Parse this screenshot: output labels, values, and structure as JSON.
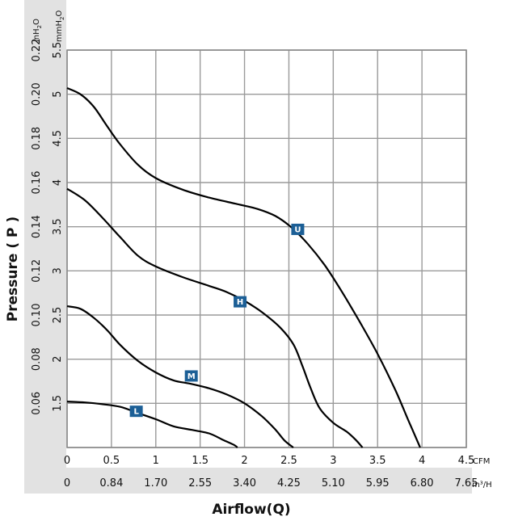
{
  "chart_data": {
    "type": "line",
    "title": "",
    "xlabel": "Airflow(Q)",
    "ylabel": "Pressure ( P )",
    "x_unit_primary": "CFM",
    "x_unit_secondary": "m³/H",
    "y_unit_inh2o_parts": [
      "inH",
      "2",
      "O"
    ],
    "y_unit_mmh2o_parts": [
      "mmH",
      "2",
      "O"
    ],
    "xlim": [
      0,
      4.5
    ],
    "ylim": [
      1,
      5.5
    ],
    "grid": true,
    "x_ticks_cfm": [
      "0",
      "0.5",
      "1",
      "1.5",
      "2",
      "2.5",
      "3",
      "3.5",
      "4",
      "4.5"
    ],
    "x_ticks_m3h": [
      "0",
      "0.84",
      "1.70",
      "2.55",
      "3.40",
      "4.25",
      "5.10",
      "5.95",
      "6.80",
      "7.65"
    ],
    "y_ticks_mmh2o": [
      "1.5",
      "2",
      "2.5",
      "3",
      "3.5",
      "4",
      "4.5",
      "5",
      "5.5"
    ],
    "y_ticks_inh2o": [
      "0.06",
      "0.08",
      "0.10",
      "0.12",
      "0.14",
      "0.16",
      "0.18",
      "0.20",
      "0.22"
    ],
    "series": [
      {
        "name": "U",
        "x": [
          0,
          0.15,
          0.3,
          0.45,
          0.6,
          0.8,
          1.0,
          1.3,
          1.6,
          1.9,
          2.15,
          2.35,
          2.52,
          2.7,
          2.9,
          3.1,
          3.3,
          3.5,
          3.7,
          3.85,
          3.98
        ],
        "y": [
          5.07,
          5.0,
          4.86,
          4.64,
          4.43,
          4.2,
          4.05,
          3.92,
          3.83,
          3.76,
          3.7,
          3.62,
          3.5,
          3.32,
          3.07,
          2.76,
          2.42,
          2.06,
          1.65,
          1.3,
          1.0
        ],
        "label_at": [
          2.6,
          3.47
        ]
      },
      {
        "name": "H",
        "x": [
          0,
          0.2,
          0.4,
          0.6,
          0.8,
          1.0,
          1.3,
          1.6,
          1.8,
          2.0,
          2.2,
          2.4,
          2.55,
          2.65,
          2.75,
          2.85,
          3.0,
          3.15,
          3.25,
          3.33
        ],
        "y": [
          3.93,
          3.8,
          3.6,
          3.38,
          3.17,
          3.05,
          2.93,
          2.83,
          2.76,
          2.66,
          2.53,
          2.36,
          2.17,
          1.93,
          1.66,
          1.44,
          1.28,
          1.18,
          1.09,
          1.0
        ],
        "label_at": [
          1.95,
          2.65
        ]
      },
      {
        "name": "M",
        "x": [
          0,
          0.15,
          0.3,
          0.45,
          0.6,
          0.8,
          1.0,
          1.2,
          1.4,
          1.6,
          1.8,
          2.0,
          2.2,
          2.35,
          2.45,
          2.55
        ],
        "y": [
          2.6,
          2.57,
          2.47,
          2.33,
          2.16,
          1.98,
          1.85,
          1.76,
          1.72,
          1.67,
          1.6,
          1.5,
          1.35,
          1.2,
          1.08,
          1.0
        ],
        "label_at": [
          1.4,
          1.81
        ]
      },
      {
        "name": "L",
        "x": [
          0,
          0.2,
          0.4,
          0.6,
          0.8,
          1.0,
          1.2,
          1.4,
          1.6,
          1.75,
          1.88,
          1.92
        ],
        "y": [
          1.52,
          1.51,
          1.49,
          1.46,
          1.39,
          1.32,
          1.24,
          1.2,
          1.16,
          1.09,
          1.03,
          1.0
        ],
        "label_at": [
          0.78,
          1.41
        ]
      }
    ]
  }
}
